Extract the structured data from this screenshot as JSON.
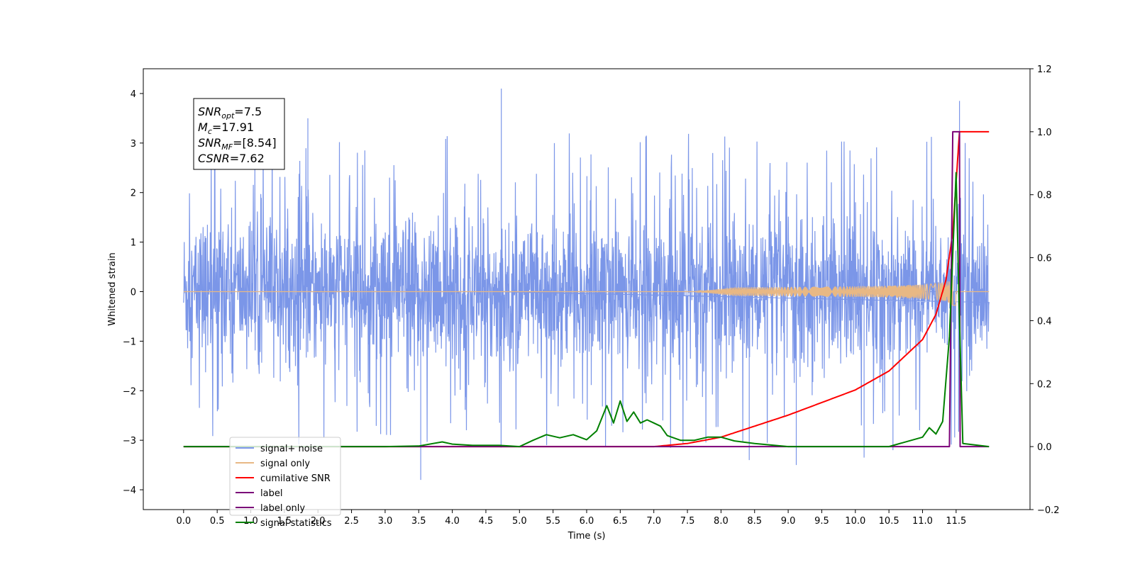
{
  "chart_data": {
    "type": "line",
    "xlabel": "Time (s)",
    "ylabel": "Whitened strain",
    "xlim": [
      -0.6,
      12.6
    ],
    "ylim": [
      -4.4,
      4.5
    ],
    "y2lim": [
      -0.2,
      1.2
    ],
    "x_ticks": [
      "0.0",
      "0.5",
      "1.0",
      "1.5",
      "2.0",
      "2.5",
      "3.0",
      "3.5",
      "4.0",
      "4.5",
      "5.0",
      "5.5",
      "6.0",
      "6.5",
      "7.0",
      "7.5",
      "8.0",
      "8.5",
      "9.0",
      "9.5",
      "10.0",
      "10.5",
      "11.0",
      "11.5"
    ],
    "y_ticks": [
      "4",
      "3",
      "2",
      "1",
      "0",
      "−1",
      "−2",
      "−3",
      "−4"
    ],
    "y2_ticks": [
      "1.2",
      "1.0",
      "0.8",
      "0.6",
      "0.4",
      "0.2",
      "0.0",
      "−0.2"
    ],
    "grid": false,
    "legend_position": "lower-left",
    "annotation": {
      "lines": [
        {
          "base": "SNR",
          "sub": "opt",
          "rest": "=7.5"
        },
        {
          "base": "M",
          "sub": "c",
          "rest": "=17.91"
        },
        {
          "base": "SNR",
          "sub": "MF",
          "rest": "=[8.54]"
        },
        {
          "base": "CSNR",
          "sub": "",
          "rest": "=7.62"
        }
      ]
    },
    "series": [
      {
        "name": "signal+ noise",
        "axis": "left",
        "color": "#7b96e8",
        "noise_band_range": [
          -1.5,
          1.5
        ],
        "spike_max": 4.1,
        "spike_min": -3.8,
        "x_range": [
          0.0,
          11.99
        ]
      },
      {
        "name": "signal only",
        "axis": "left",
        "color": "#e8b884",
        "chirp_start": 7.6,
        "chirp_peak_time": 11.45,
        "chirp_peak_amplitude": 0.32,
        "end_time": 11.5
      },
      {
        "name": "cumilative SNR",
        "axis": "right",
        "color": "#ff0000",
        "x": [
          0.0,
          7.0,
          7.5,
          8.0,
          8.5,
          9.0,
          9.5,
          10.0,
          10.5,
          11.0,
          11.2,
          11.35,
          11.45,
          11.55,
          11.99
        ],
        "y": [
          0.0,
          0.0,
          0.01,
          0.03,
          0.065,
          0.1,
          0.14,
          0.18,
          0.24,
          0.34,
          0.42,
          0.53,
          0.68,
          1.0,
          1.0
        ]
      },
      {
        "name": "label",
        "axis": "right",
        "color": "#7a0078",
        "x": [
          0.0,
          11.4,
          11.45,
          11.55,
          11.56,
          11.99
        ],
        "y": [
          0.0,
          0.0,
          1.0,
          1.0,
          0.0,
          0.0
        ]
      },
      {
        "name": "label only",
        "axis": "right",
        "color": "#7a0078"
      },
      {
        "name": "signal statistics",
        "axis": "right",
        "color": "#008000",
        "x": [
          0.0,
          3.0,
          3.5,
          3.85,
          4.0,
          4.3,
          4.7,
          5.0,
          5.2,
          5.4,
          5.6,
          5.8,
          6.0,
          6.15,
          6.3,
          6.4,
          6.5,
          6.6,
          6.7,
          6.8,
          6.9,
          7.0,
          7.1,
          7.2,
          7.4,
          7.6,
          7.8,
          8.0,
          8.2,
          8.5,
          9.0,
          10.5,
          11.0,
          11.1,
          11.2,
          11.3,
          11.4,
          11.5,
          11.55,
          11.6,
          11.99
        ],
        "y": [
          0.0,
          0.0,
          0.002,
          0.015,
          0.008,
          0.004,
          0.004,
          0.0,
          0.02,
          0.038,
          0.028,
          0.038,
          0.022,
          0.05,
          0.13,
          0.075,
          0.145,
          0.08,
          0.11,
          0.075,
          0.085,
          0.075,
          0.065,
          0.035,
          0.02,
          0.02,
          0.03,
          0.03,
          0.018,
          0.01,
          0.0,
          0.0,
          0.03,
          0.06,
          0.04,
          0.08,
          0.35,
          0.87,
          0.4,
          0.01,
          0.0
        ]
      }
    ]
  }
}
